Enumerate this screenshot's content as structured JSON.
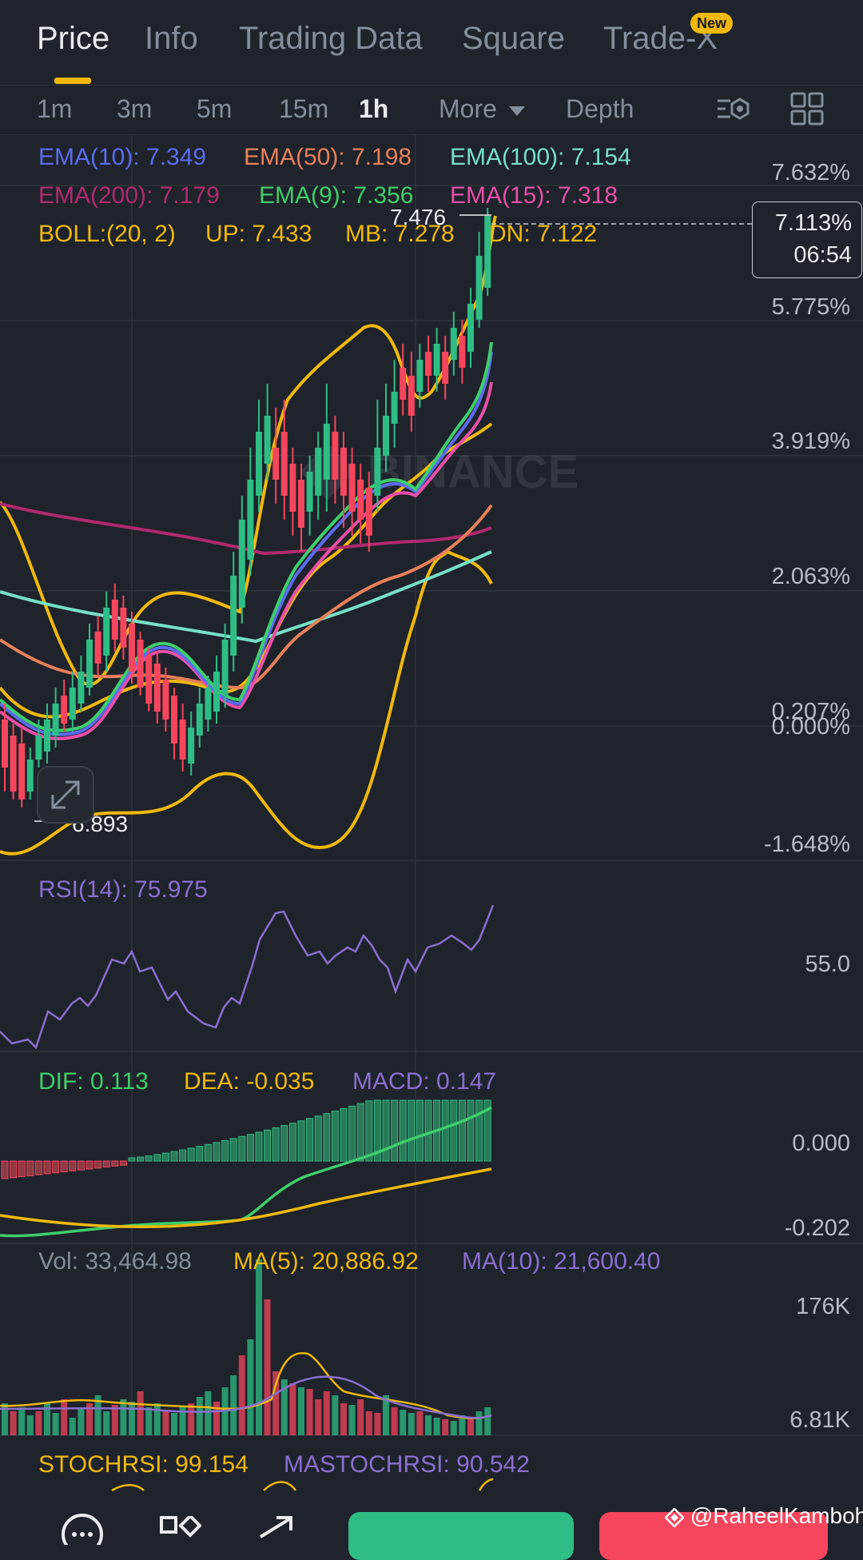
{
  "tabs": [
    {
      "label": "Price"
    },
    {
      "label": "Info"
    },
    {
      "label": "Trading Data"
    },
    {
      "label": "Square"
    },
    {
      "label": "Trade-X"
    }
  ],
  "new_badge": "New",
  "intervals": [
    "1m",
    "3m",
    "5m",
    "15m",
    "1h"
  ],
  "more_label": "More",
  "depth_label": "Depth",
  "ema": {
    "ema10": "EMA(10): 7.349",
    "ema50": "EMA(50): 7.198",
    "ema100": "EMA(100): 7.154",
    "ema200": "EMA(200): 7.179",
    "ema9": "EMA(9): 7.356",
    "ema15": "EMA(15): 7.318"
  },
  "boll": {
    "label": "BOLL:(20, 2)",
    "up": "UP: 7.433",
    "mb": "MB: 7.278",
    "dn": "DN: 7.122"
  },
  "price_axis": [
    "7.632%",
    "5.775%",
    "3.919%",
    "2.063%",
    "0.207%",
    "0.000%",
    "-1.648%"
  ],
  "high_marker": "7.476",
  "low_marker": "6.893",
  "current_box": {
    "pct": "7.113%",
    "time": "06:54"
  },
  "rsi": {
    "label": "RSI(14): 75.975",
    "axis": "55.0"
  },
  "macd": {
    "dif": "DIF: 0.113",
    "dea": "DEA: -0.035",
    "macd": "MACD: 0.147",
    "axis_top": "0.000",
    "axis_bottom": "-0.202"
  },
  "volume": {
    "vol": "Vol: 33,464.98",
    "ma5": "MA(5): 20,886.92",
    "ma10": "MA(10): 21,600.40",
    "axis_top": "176K",
    "axis_bottom": "6.81K"
  },
  "stochrsi": {
    "stoch": "STOCHRSI: 99.154",
    "ma": "MASTOCHRSI: 90.542"
  },
  "watermark": "@RaheelKamboh",
  "colors": {
    "accent": "#f0b90b",
    "up": "#2ebd85",
    "down": "#f6465d",
    "ema10": "#5b6cf0",
    "ema50": "#e8805a",
    "ema100": "#76e0c8",
    "ema200": "#b02a6e",
    "ema9": "#3ecf6a",
    "ema15": "#e94fa8",
    "rsi": "#8a6fd1"
  }
}
